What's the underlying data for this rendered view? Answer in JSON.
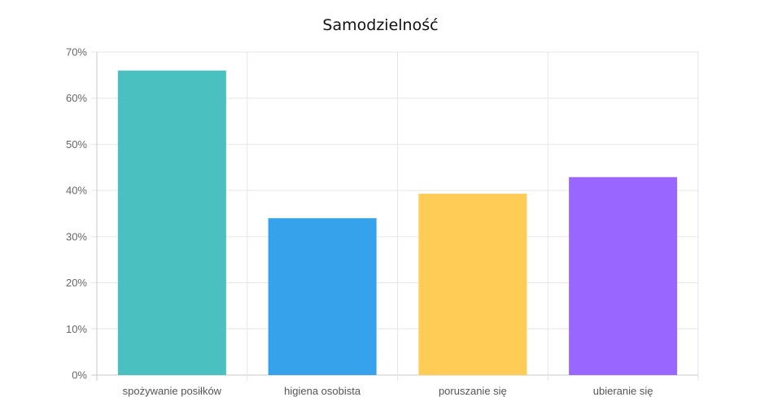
{
  "chart_data": {
    "type": "bar",
    "title": "Samodzielność",
    "xlabel": "",
    "ylabel": "",
    "categories": [
      "spożywanie posiłków",
      "higiena osobista",
      "poruszanie się",
      "ubieranie się"
    ],
    "values": [
      66,
      34,
      39.3,
      42.9
    ],
    "colors": [
      "#4bc0c0",
      "#36a2eb",
      "#ffcd56",
      "#9966ff"
    ],
    "ylim": [
      0,
      70
    ],
    "yticks": [
      0,
      10,
      20,
      30,
      40,
      50,
      60,
      70
    ],
    "ytick_labels": [
      "0%",
      "10%",
      "20%",
      "30%",
      "40%",
      "50%",
      "60%",
      "70%"
    ],
    "grid": true,
    "legend": "none"
  }
}
